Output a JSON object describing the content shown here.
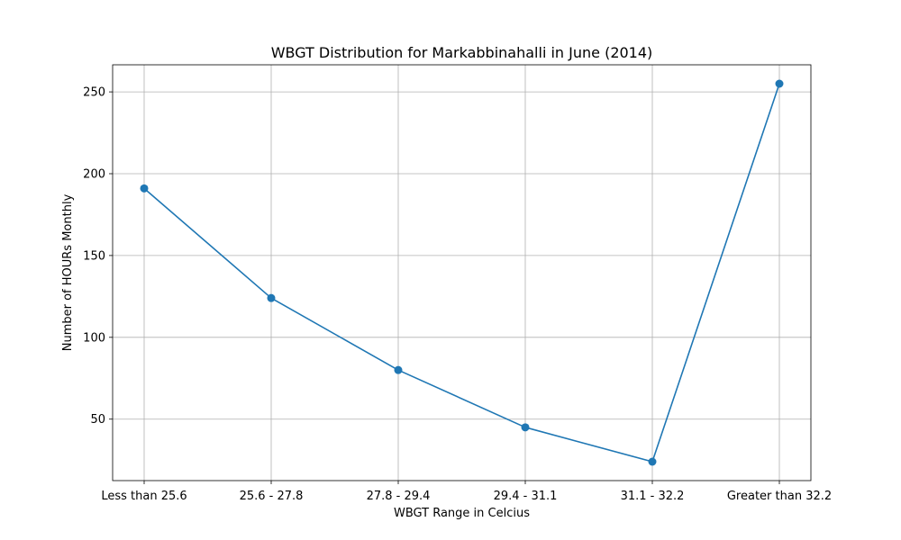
{
  "chart_data": {
    "type": "line",
    "title": "WBGT Distribution for Markabbinahalli in June (2014)",
    "xlabel": "WBGT Range in Celcius",
    "ylabel": "Number of HOURs Monthly",
    "categories": [
      "Less than 25.6",
      "25.6 - 27.8",
      "27.8 - 29.4",
      "29.4 - 31.1",
      "31.1 - 32.2",
      "Greater than 32.2"
    ],
    "series": [
      {
        "values": [
          191,
          124,
          80,
          45,
          24,
          255
        ]
      }
    ],
    "yticks": [
      "50",
      "100",
      "150",
      "200",
      "250"
    ],
    "ytick_values": [
      50,
      100,
      150,
      200,
      250
    ],
    "ylim": [
      12.45,
      266.55
    ],
    "grid": true,
    "color": "#1f77b4"
  }
}
